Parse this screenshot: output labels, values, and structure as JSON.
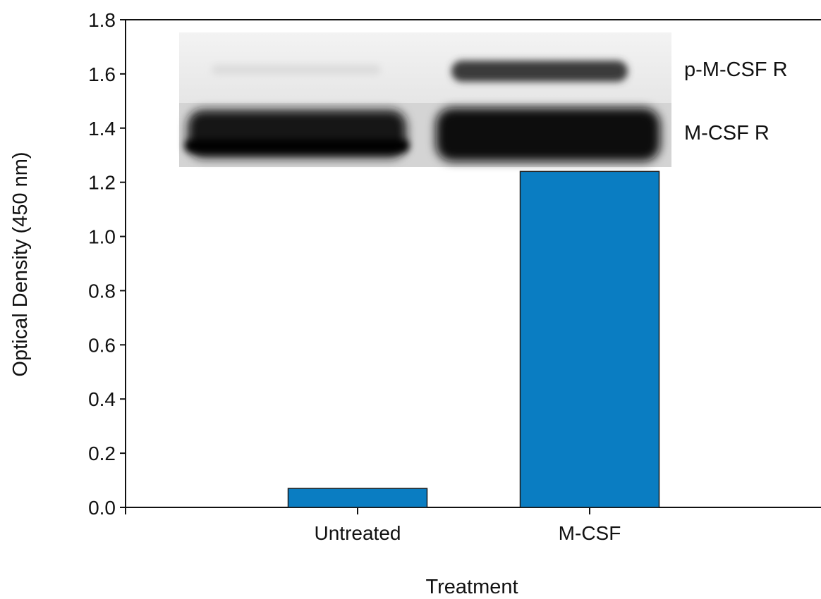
{
  "chart_data": {
    "type": "bar",
    "categories": [
      "Untreated",
      "M-CSF"
    ],
    "series": [
      {
        "values": [
          0.07,
          1.24
        ],
        "color": "#0a7dc2"
      }
    ],
    "xlabel": "Treatment",
    "ylabel": "Optical Density (450 nm)",
    "ylim": [
      0,
      1.8
    ],
    "yticks": [
      "0.0",
      "0.2",
      "0.4",
      "0.6",
      "0.8",
      "1.0",
      "1.2",
      "1.4",
      "1.6",
      "1.8"
    ],
    "grid": false,
    "inset": {
      "type": "western-blot",
      "labels": [
        "p-M-CSF R",
        "M-CSF R"
      ]
    }
  }
}
